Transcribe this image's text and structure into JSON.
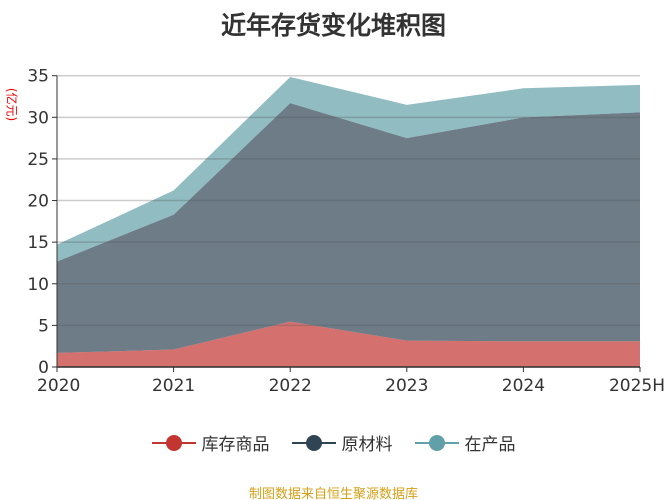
{
  "chart_data": {
    "type": "area",
    "stacked": true,
    "title": "近年存货变化堆积图",
    "ylabel": "(亿元)",
    "categories": [
      "2020",
      "2021",
      "2022",
      "2023",
      "2024",
      "2025H"
    ],
    "ylim": [
      0,
      35
    ],
    "yticks": [
      0,
      5,
      10,
      15,
      20,
      25,
      30,
      35
    ],
    "grid": true,
    "legend_position": "bottom",
    "series": [
      {
        "name": "库存商品",
        "values": [
          1.7,
          2.1,
          5.45,
          3.17,
          3.09,
          3.1
        ],
        "color": "#c23531"
      },
      {
        "name": "原材料",
        "values": [
          10.97,
          16.2,
          26.25,
          24.33,
          26.9,
          27.5
        ],
        "color": "#2f4554"
      },
      {
        "name": "在产品",
        "values": [
          2.03,
          2.9,
          3.15,
          4.0,
          3.5,
          3.3
        ],
        "color": "#61a0a8"
      }
    ]
  },
  "source": "制图数据来自恒生聚源数据库"
}
